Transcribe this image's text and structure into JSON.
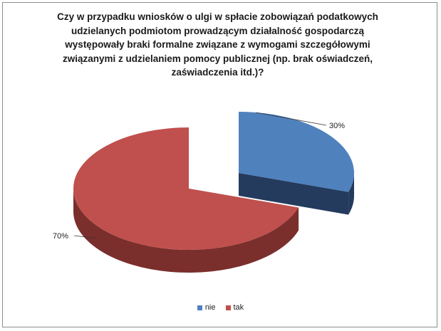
{
  "chart_data": {
    "type": "pie",
    "style": "3d-exploded",
    "title_lines": [
      "Czy w przypadku wniosków o ulgi w spłacie zobowiązań podatkowych",
      "udzielanych podmiotom prowadzącym działalność gospodarczą",
      "występowały braki formalne związane z wymogami szczegółowymi",
      "związanymi z udzielaniem pomocy publicznej (np. brak oświadczeń,",
      "zaświadczenia itd.)?"
    ],
    "categories": [
      "nie",
      "tak"
    ],
    "values": [
      30,
      70
    ],
    "value_labels": [
      "30%",
      "70%"
    ],
    "colors": [
      "#4f81bd",
      "#c0504d"
    ],
    "side_colors": [
      "#243b5e",
      "#7a2f2d"
    ],
    "legend_position": "bottom"
  }
}
